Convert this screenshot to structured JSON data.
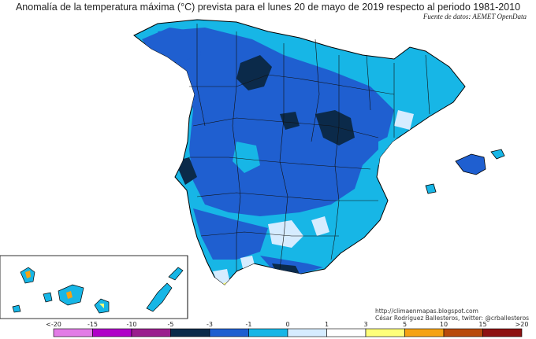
{
  "title": "Anomalía de la temperatura máxima (°C) prevista para el lunes 20 de mayo de 2019 respecto al periodo 1981-2010",
  "source": "Fuente de datos: AEMET OpenData",
  "credits": {
    "blog": "http://climaenmapas.blogspot.com",
    "author": "César Rodríguez Ballesteros, twitter: @crballesteros"
  },
  "legend": {
    "labels": [
      "<-20",
      "-15",
      "-10",
      "-5",
      "-3",
      "-1",
      "0",
      "1",
      "3",
      "5",
      "10",
      "15",
      ">20"
    ],
    "colors": [
      "#e27ce6",
      "#b000c8",
      "#9a1e8e",
      "#0b2a4a",
      "#1f5fd0",
      "#17b6e6",
      "#d6ecff",
      "#ffffff",
      "#ffff7a",
      "#f5a214",
      "#b84a0c",
      "#8e1212",
      "#5a3e10"
    ]
  }
}
